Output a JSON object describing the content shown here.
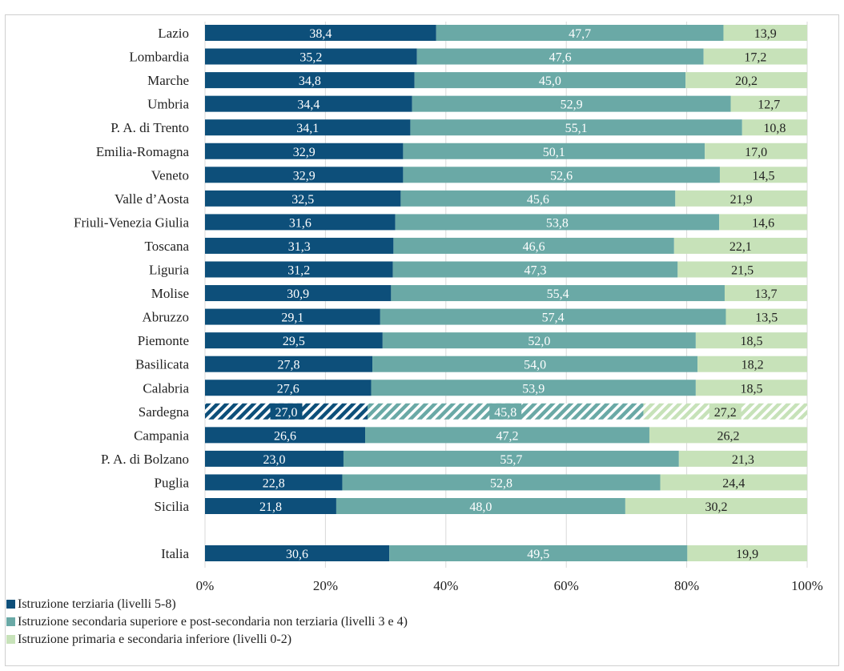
{
  "chart_data": {
    "type": "bar",
    "orientation": "horizontal",
    "stacked": true,
    "percent": true,
    "xlim": [
      0,
      100
    ],
    "x_ticks": [
      "0%",
      "20%",
      "40%",
      "60%",
      "80%",
      "100%"
    ],
    "grid": true,
    "legend_position": "bottom-left",
    "colors": {
      "tertiary": "#0d4f7a",
      "secondary": "#6aa9a6",
      "primary": "#c7e2b9"
    },
    "hatched_category": "Sardegna",
    "categories": [
      "Lazio",
      "Lombardia",
      "Marche",
      "Umbria",
      "P. A. di Trento",
      "Emilia-Romagna",
      "Veneto",
      "Valle d’Aosta",
      "Friuli-Venezia Giulia",
      "Toscana",
      "Liguria",
      "Molise",
      "Abruzzo",
      "Piemonte",
      "Basilicata",
      "Calabria",
      "Sardegna",
      "Campania",
      "P. A. di Bolzano",
      "Puglia",
      "Sicilia",
      "Italia"
    ],
    "series": [
      {
        "name": "Istruzione terziaria (livelli 5-8)",
        "values": [
          38.4,
          35.2,
          34.8,
          34.4,
          34.1,
          32.9,
          32.9,
          32.5,
          31.6,
          31.3,
          31.2,
          30.9,
          29.1,
          29.5,
          27.8,
          27.6,
          27.0,
          26.6,
          23.0,
          22.8,
          21.8,
          30.6
        ],
        "labels": [
          "38,4",
          "35,2",
          "34,8",
          "34,4",
          "34,1",
          "32,9",
          "32,9",
          "32,5",
          "31,6",
          "31,3",
          "31,2",
          "30,9",
          "29,1",
          "29,5",
          "27,8",
          "27,6",
          "27,0",
          "26,6",
          "23,0",
          "22,8",
          "21,8",
          "30,6"
        ]
      },
      {
        "name": "Istruzione secondaria superiore e post-secondaria non terziaria (livelli 3 e 4)",
        "values": [
          47.7,
          47.6,
          45.0,
          52.9,
          55.1,
          50.1,
          52.6,
          45.6,
          53.8,
          46.6,
          47.3,
          55.4,
          57.4,
          52.0,
          54.0,
          53.9,
          45.8,
          47.2,
          55.7,
          52.8,
          48.0,
          49.5
        ],
        "labels": [
          "47,7",
          "47,6",
          "45,0",
          "52,9",
          "55,1",
          "50,1",
          "52,6",
          "45,6",
          "53,8",
          "46,6",
          "47,3",
          "55,4",
          "57,4",
          "52,0",
          "54,0",
          "53,9",
          "45,8",
          "47,2",
          "55,7",
          "52,8",
          "48,0",
          "49,5"
        ]
      },
      {
        "name": "Istruzione primaria e secondaria inferiore (livelli 0-2)",
        "values": [
          13.9,
          17.2,
          20.2,
          12.7,
          10.8,
          17.0,
          14.5,
          21.9,
          14.6,
          22.1,
          21.5,
          13.7,
          13.5,
          18.5,
          18.2,
          18.5,
          27.2,
          26.2,
          21.3,
          24.4,
          30.2,
          19.9
        ],
        "labels": [
          "13,9",
          "17,2",
          "20,2",
          "12,7",
          "10,8",
          "17,0",
          "14,5",
          "21,9",
          "14,6",
          "22,1",
          "21,5",
          "13,7",
          "13,5",
          "18,5",
          "18,2",
          "18,5",
          "27,2",
          "26,2",
          "21,3",
          "24,4",
          "30,2",
          "19,9"
        ]
      }
    ]
  }
}
